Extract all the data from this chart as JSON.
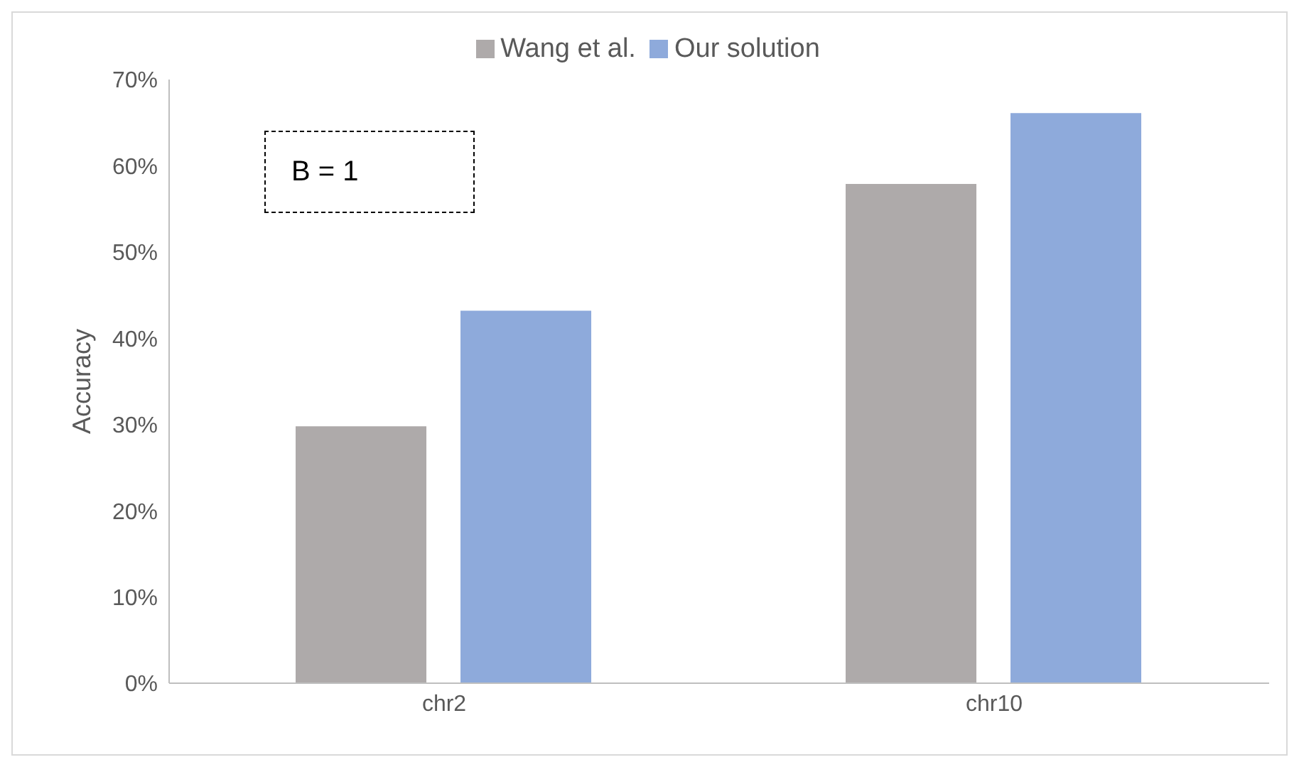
{
  "chart_data": {
    "type": "bar",
    "categories": [
      "chr2",
      "chr10"
    ],
    "series": [
      {
        "name": "Wang et al.",
        "color": "#aeaaaa",
        "values": [
          29.8,
          57.9
        ]
      },
      {
        "name": "Our solution",
        "color": "#8eaadb",
        "values": [
          43.2,
          66.1
        ]
      }
    ],
    "ylabel": "Accuracy",
    "ylim": [
      0,
      70
    ],
    "yticks": [
      {
        "value": 0,
        "label": "0%"
      },
      {
        "value": 10,
        "label": "10%"
      },
      {
        "value": 20,
        "label": "20%"
      },
      {
        "value": 30,
        "label": "30%"
      },
      {
        "value": 40,
        "label": "40%"
      },
      {
        "value": 50,
        "label": "50%"
      },
      {
        "value": 60,
        "label": "60%"
      },
      {
        "value": 70,
        "label": "70%"
      }
    ],
    "annotations": [
      "B = 1"
    ],
    "legend": "top",
    "grid": false
  }
}
